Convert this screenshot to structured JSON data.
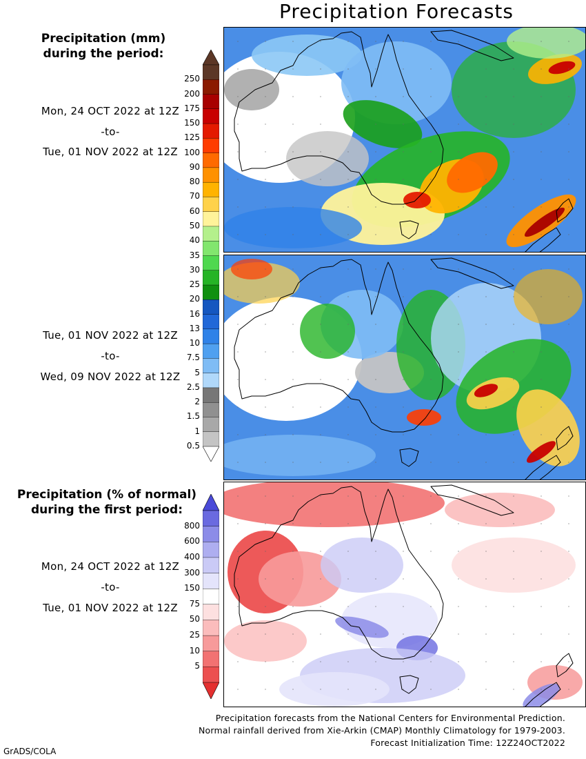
{
  "title": "Precipitation Forecasts",
  "legend_mm": {
    "heading_line1": "Precipitation (mm)",
    "heading_line2": "during the period:",
    "ticks": [
      "250",
      "200",
      "175",
      "150",
      "125",
      "100",
      "90",
      "80",
      "70",
      "60",
      "50",
      "40",
      "35",
      "30",
      "25",
      "20",
      "16",
      "13",
      "10",
      "7.5",
      "5",
      "2.5",
      "2",
      "1.5",
      "1",
      "0.5"
    ],
    "colors": [
      "#5c3726",
      "#8b1a00",
      "#a80000",
      "#c80000",
      "#e41a00",
      "#ff3c00",
      "#ff6a00",
      "#ff9100",
      "#ffb300",
      "#ffd24a",
      "#fff39a",
      "#b4f08c",
      "#82e66e",
      "#4fd84f",
      "#26b426",
      "#109010",
      "#1557c0",
      "#2168d8",
      "#2f82e8",
      "#4fa0f0",
      "#7fbcf5",
      "#b0d8fa",
      "#777777",
      "#909090",
      "#a8a8a8",
      "#c4c4c4"
    ],
    "top_arrow_color": "#5c3726",
    "bottom_arrow_color": "#ffffff"
  },
  "period1": {
    "start": "Mon, 24 OCT 2022 at 12Z",
    "to": "-to-",
    "end": "Tue, 01 NOV 2022 at 12Z"
  },
  "period2": {
    "start": "Tue, 01 NOV 2022 at 12Z",
    "to": "-to-",
    "end": "Wed, 09 NOV 2022 at 12Z"
  },
  "legend_pct": {
    "heading_line1": "Precipitation (% of normal)",
    "heading_line2": "during the first period:",
    "ticks": [
      "800",
      "600",
      "400",
      "300",
      "150",
      "75",
      "50",
      "25",
      "10",
      "5"
    ],
    "colors": [
      "#6a6ae0",
      "#8c8ce8",
      "#aeaef0",
      "#cacaf6",
      "#e4e4fb",
      "#ffffff",
      "#fde0e0",
      "#fbbcbc",
      "#f79a9a",
      "#f27272",
      "#ec5050"
    ],
    "top_arrow_color": "#4a4ad8",
    "bottom_arrow_color": "#e43030"
  },
  "period3": {
    "start": "Mon, 24 OCT 2022 at 12Z",
    "to": "-to-",
    "end": "Tue, 01 NOV 2022 at 12Z"
  },
  "footer": {
    "line1": "Precipitation forecasts from the National Centers for Environmental Prediction.",
    "line2": "Normal rainfall derived from Xie-Arkin (CMAP) Monthly Climatology for 1979-2003.",
    "line3": "Forecast Initialization Time: 12Z24OCT2022"
  },
  "credit": "GrADS/COLA"
}
